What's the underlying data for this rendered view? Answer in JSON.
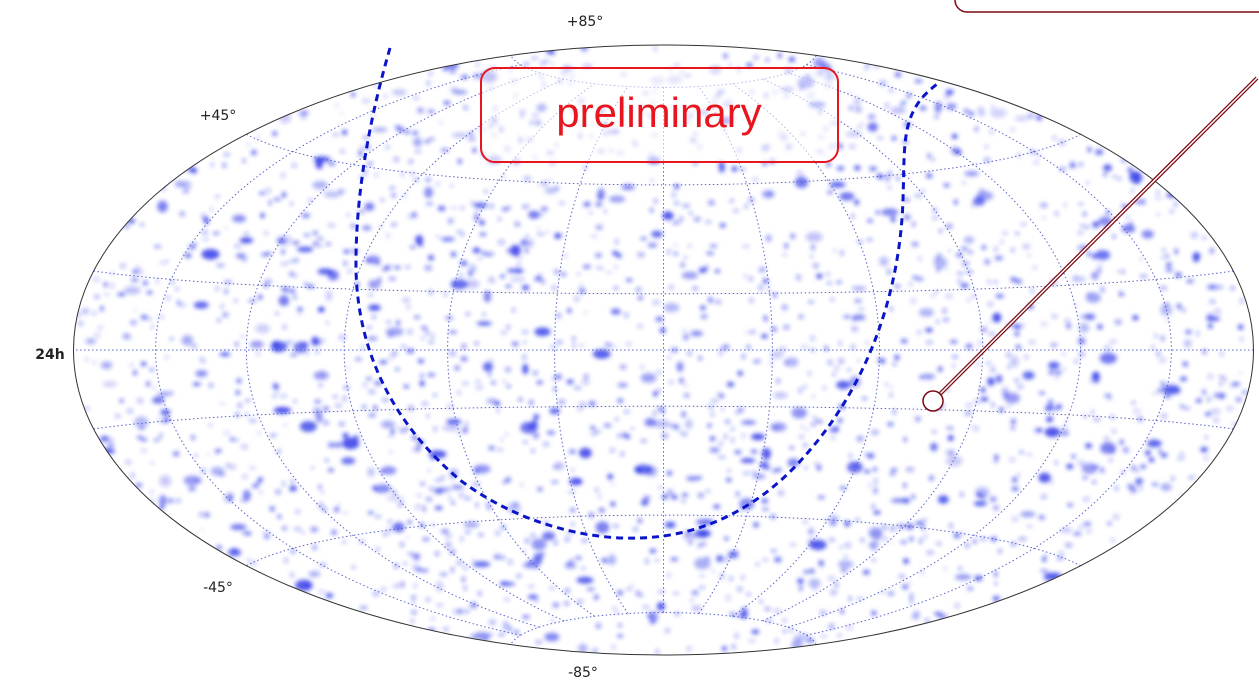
{
  "map": {
    "labels": {
      "top": "+85°",
      "upper": "+45°",
      "center": "24h",
      "lower": "-45°",
      "bottom": "-85°"
    },
    "annotation": "preliminary"
  }
}
